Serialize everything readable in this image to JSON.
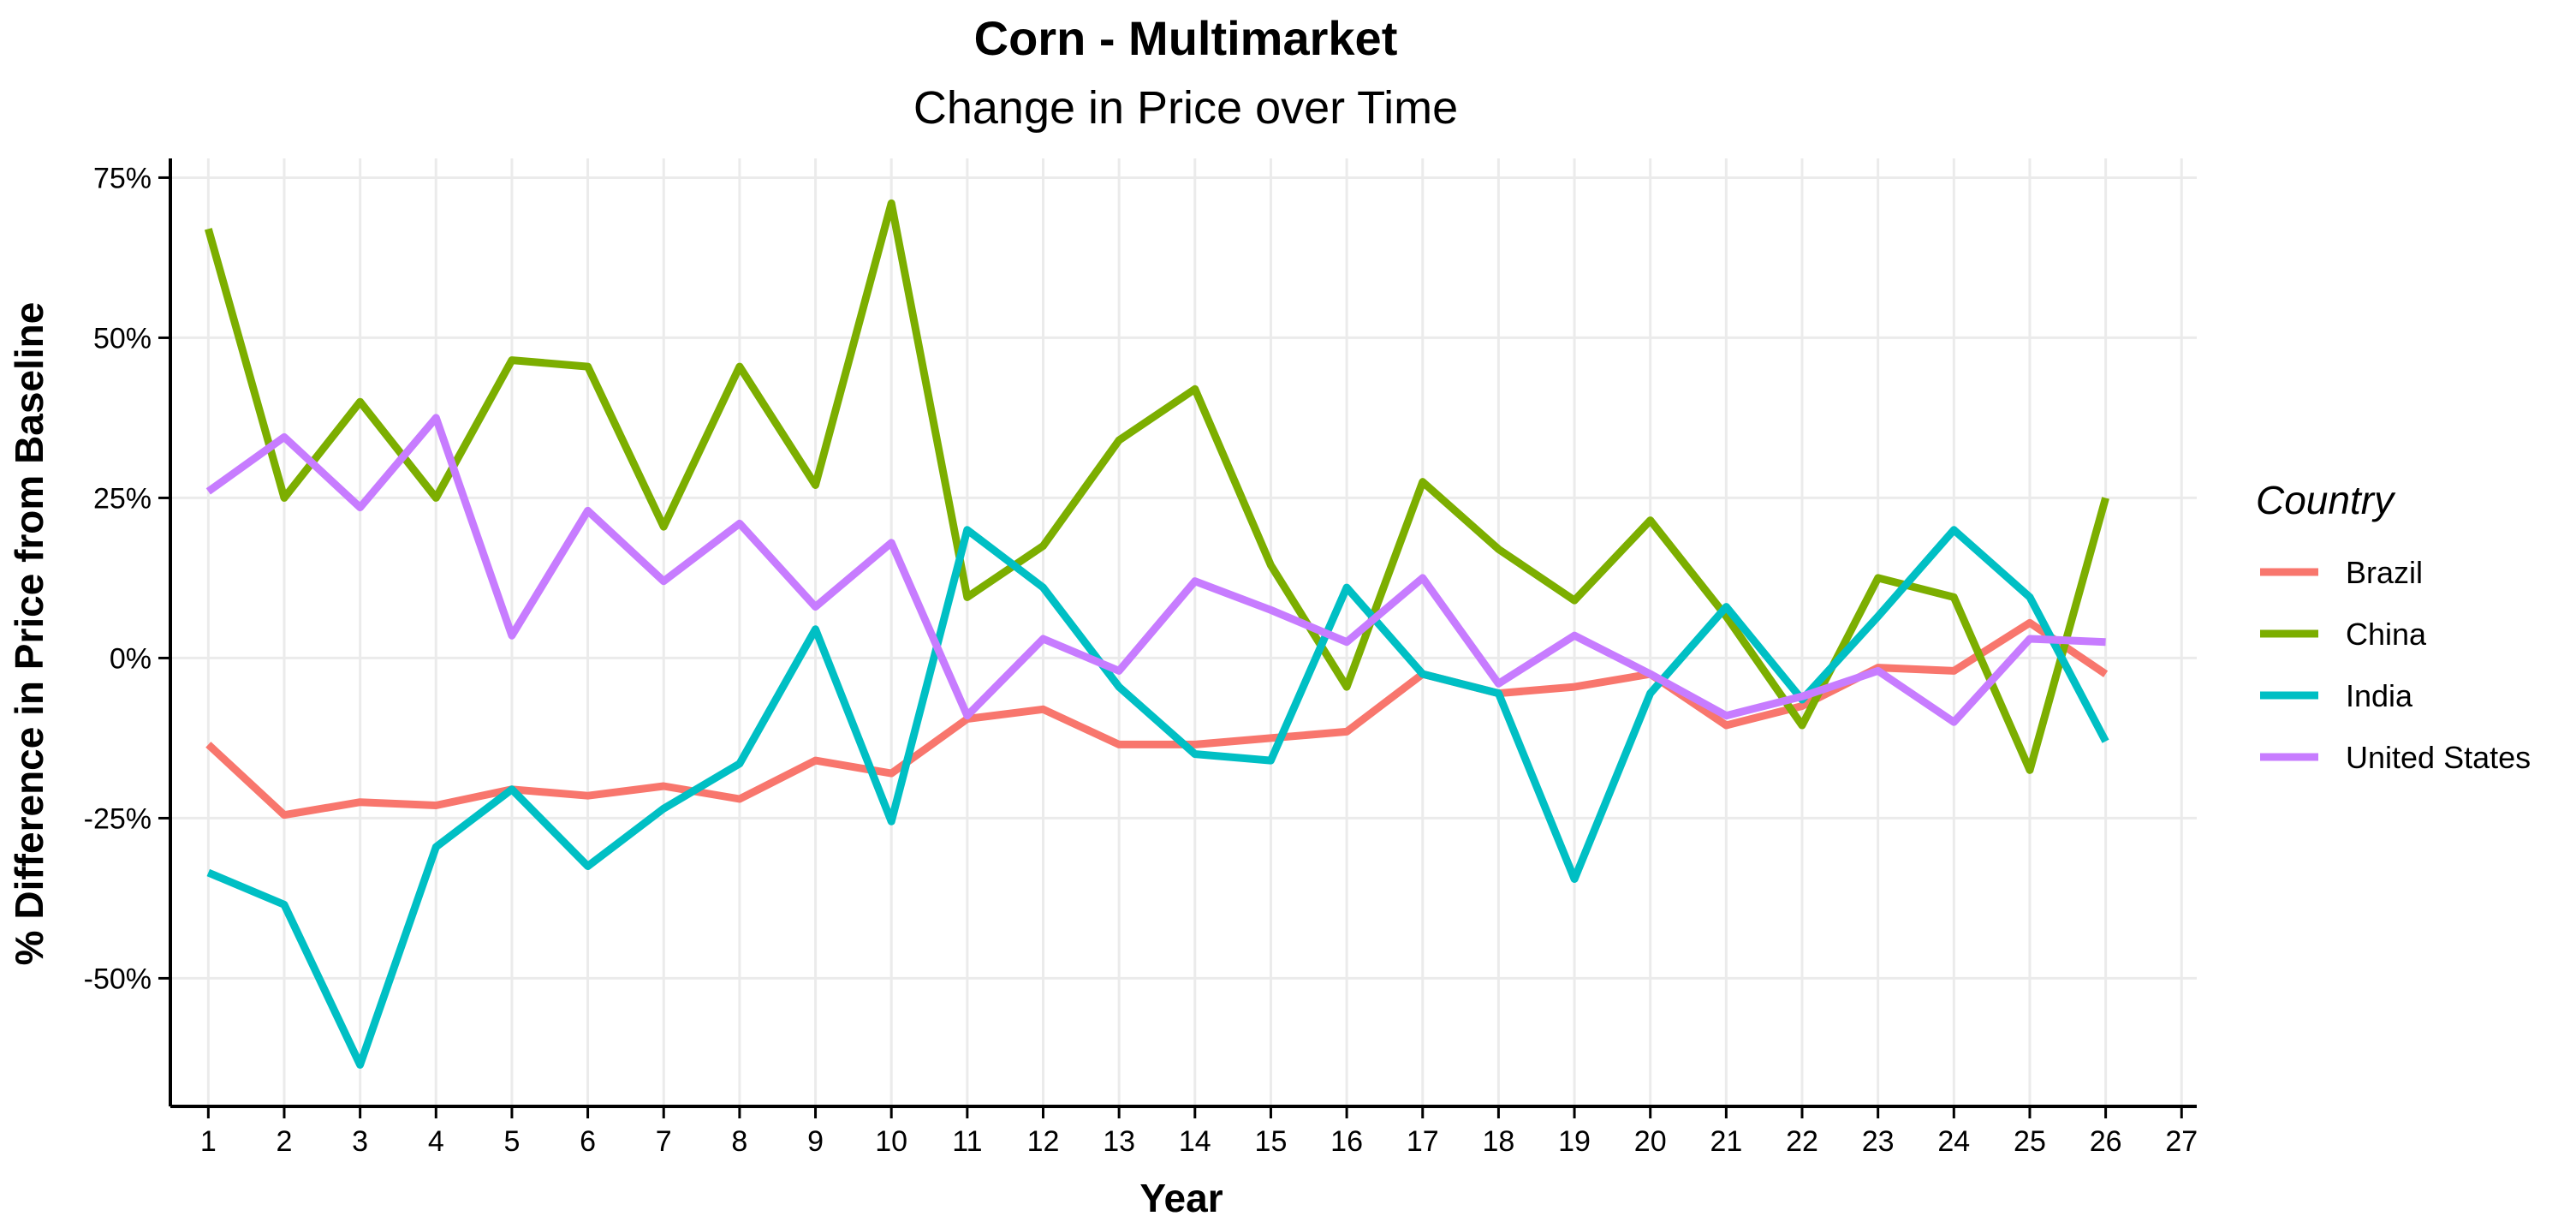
{
  "chart_data": {
    "type": "line",
    "title": "Corn - Multimarket",
    "subtitle": "Change in Price over Time",
    "xlabel": "Year",
    "ylabel": "% Difference in Price from Baseline",
    "x": [
      1,
      2,
      3,
      4,
      5,
      6,
      7,
      8,
      9,
      10,
      11,
      12,
      13,
      14,
      15,
      16,
      17,
      18,
      19,
      20,
      21,
      22,
      23,
      24,
      25,
      26
    ],
    "x_ticks": [
      "1",
      "2",
      "3",
      "4",
      "5",
      "6",
      "7",
      "8",
      "9",
      "10",
      "11",
      "12",
      "13",
      "14",
      "15",
      "16",
      "17",
      "18",
      "19",
      "20",
      "21",
      "22",
      "23",
      "24",
      "25",
      "26",
      "27"
    ],
    "y_ticks": [
      "75%",
      "50%",
      "25%",
      "0%",
      "-25%",
      "-50%"
    ],
    "y_tick_values": [
      75,
      50,
      25,
      0,
      -25,
      -50
    ],
    "xlim": [
      0.5,
      27.2
    ],
    "ylim": [
      -70,
      78
    ],
    "grid": true,
    "legend": {
      "title": "Country",
      "placement": "right"
    },
    "series": [
      {
        "name": "Brazil",
        "color": "#F8766D",
        "values": [
          -13.5,
          -24.5,
          -22.5,
          -23,
          -20.5,
          -21.5,
          -20,
          -22,
          -16,
          -18,
          -9.5,
          -8,
          -13.5,
          -13.5,
          -12.5,
          -11.5,
          -2.5,
          -5.5,
          -4.5,
          -2.5,
          -10.5,
          -7.5,
          -1.5,
          -2,
          5.5,
          -2.5
        ]
      },
      {
        "name": "China",
        "color": "#7CAE00",
        "values": [
          67,
          25,
          40,
          25,
          46.5,
          45.5,
          20.5,
          45.5,
          27,
          71,
          9.5,
          17.5,
          34,
          42,
          14.5,
          -4.5,
          27.5,
          17,
          9,
          21.5,
          6.5,
          -10.5,
          12.5,
          9.5,
          -17.5,
          25
        ]
      },
      {
        "name": "India",
        "color": "#00BFC4",
        "values": [
          -33.5,
          -38.5,
          -63.5,
          -29.5,
          -20.5,
          -32.5,
          -23.5,
          -16.5,
          4.5,
          -25.5,
          20,
          11,
          -4.5,
          -15,
          -16,
          11,
          -2.5,
          -5.5,
          -34.5,
          -5.5,
          8,
          -6.5,
          6.5,
          20,
          9.5,
          -13
        ]
      },
      {
        "name": "United States",
        "color": "#C77CFF",
        "values": [
          26,
          34.5,
          23.5,
          37.5,
          3.5,
          23,
          12,
          21,
          8,
          18,
          -9,
          3,
          -2,
          12,
          7.5,
          2.5,
          12.5,
          -4,
          3.5,
          -2.5,
          -9,
          -6,
          -2,
          -10,
          3,
          2.5
        ]
      }
    ]
  }
}
